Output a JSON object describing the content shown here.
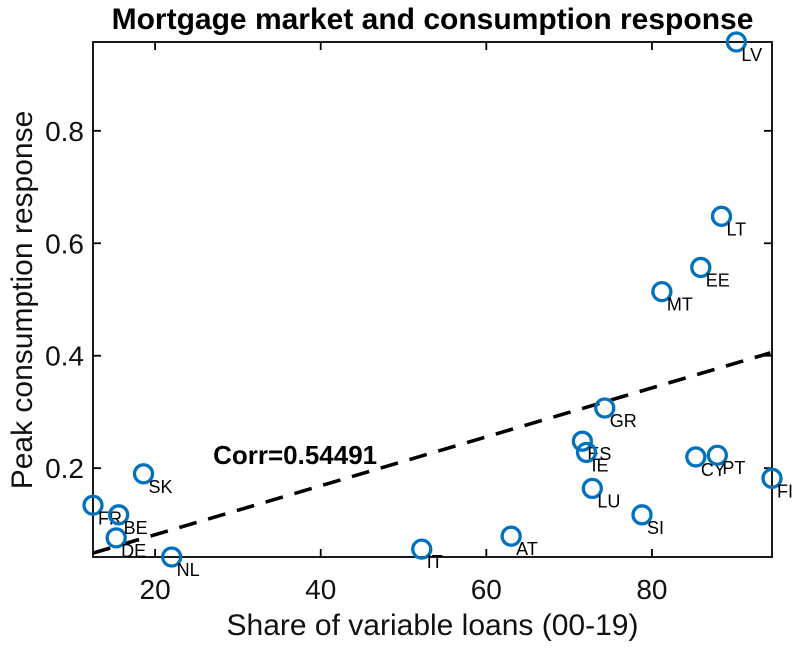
{
  "chart_data": {
    "type": "scatter",
    "title": "Mortgage market and consumption response",
    "xlabel": "Share of variable loans (00-19)",
    "ylabel": "Peak consumption response",
    "xlim": [
      12.5,
      94.5
    ],
    "ylim": [
      0.042,
      0.958
    ],
    "xticks": [
      20,
      40,
      60,
      80
    ],
    "yticks": [
      0.2,
      0.4,
      0.6,
      0.8
    ],
    "grid": false,
    "legend": null,
    "marker_color": "#0072BD",
    "axis_color": "#000000",
    "points": [
      {
        "label": "FR",
        "x": 12.5,
        "y": 0.134
      },
      {
        "label": "DE",
        "x": 15.3,
        "y": 0.076
      },
      {
        "label": "BE",
        "x": 15.6,
        "y": 0.117
      },
      {
        "label": "SK",
        "x": 18.6,
        "y": 0.19
      },
      {
        "label": "NL",
        "x": 22.0,
        "y": 0.042
      },
      {
        "label": "IT",
        "x": 52.2,
        "y": 0.056
      },
      {
        "label": "AT",
        "x": 63.0,
        "y": 0.079
      },
      {
        "label": "ES",
        "x": 71.6,
        "y": 0.248
      },
      {
        "label": "IE",
        "x": 72.1,
        "y": 0.228
      },
      {
        "label": "LU",
        "x": 72.8,
        "y": 0.164
      },
      {
        "label": "GR",
        "x": 74.3,
        "y": 0.307
      },
      {
        "label": "SI",
        "x": 78.8,
        "y": 0.117
      },
      {
        "label": "MT",
        "x": 81.2,
        "y": 0.514
      },
      {
        "label": "CY",
        "x": 85.3,
        "y": 0.22
      },
      {
        "label": "EE",
        "x": 85.9,
        "y": 0.557
      },
      {
        "label": "PT",
        "x": 87.9,
        "y": 0.223
      },
      {
        "label": "LT",
        "x": 88.4,
        "y": 0.648
      },
      {
        "label": "LV",
        "x": 90.2,
        "y": 0.958
      },
      {
        "label": "FI",
        "x": 94.5,
        "y": 0.182
      }
    ],
    "trendline": {
      "style": "dashed",
      "color": "#000000",
      "x1": 12.5,
      "y1": 0.049,
      "x2": 94.3,
      "y2": 0.405
    },
    "annotation": {
      "text": "Corr=0.54491",
      "x": 27.0,
      "y": 0.207
    }
  }
}
